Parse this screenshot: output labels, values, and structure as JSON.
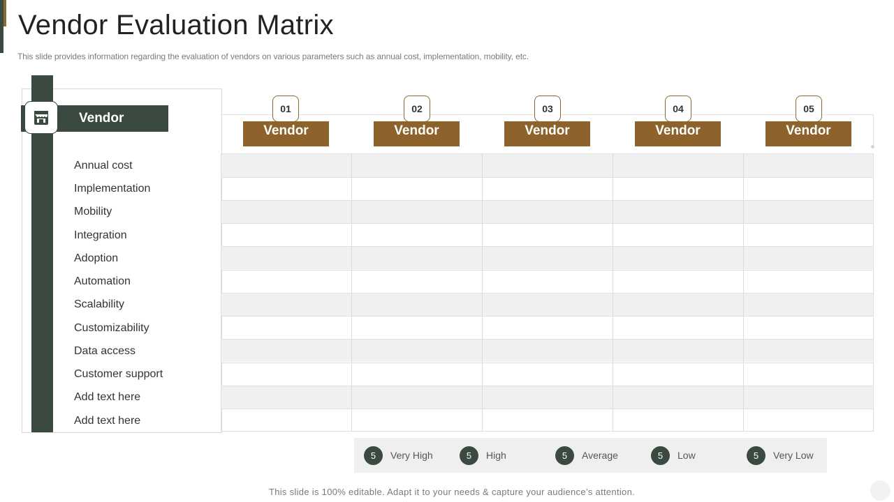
{
  "slide": {
    "title": "Vendor Evaluation Matrix",
    "subtitle": "This slide provides information regarding the evaluation of vendors on various parameters such as annual cost, implementation, mobility, etc.",
    "footer": "This slide is 100% editable. Adapt it to your needs & capture your audience’s attention."
  },
  "left": {
    "header_label": "Vendor",
    "icon": "store-icon",
    "parameters": [
      "Annual cost",
      "Implementation",
      "Mobility",
      "Integration",
      "Adoption",
      "Automation",
      "Scalability",
      "Customizability",
      "Data access",
      "Customer support",
      "Add text here",
      "Add text here"
    ]
  },
  "vendors": [
    {
      "number": "01",
      "label": "Vendor"
    },
    {
      "number": "02",
      "label": "Vendor"
    },
    {
      "number": "03",
      "label": "Vendor"
    },
    {
      "number": "04",
      "label": "Vendor"
    },
    {
      "number": "05",
      "label": "Vendor"
    }
  ],
  "legend": [
    {
      "value": "5",
      "label": "Very High"
    },
    {
      "value": "5",
      "label": "High"
    },
    {
      "value": "5",
      "label": "Average"
    },
    {
      "value": "5",
      "label": "Low"
    },
    {
      "value": "5",
      "label": "Very Low"
    }
  ],
  "colors": {
    "dark_green": "#3b4a40",
    "brown": "#8e632b",
    "row_shade": "#f0f0f0"
  }
}
